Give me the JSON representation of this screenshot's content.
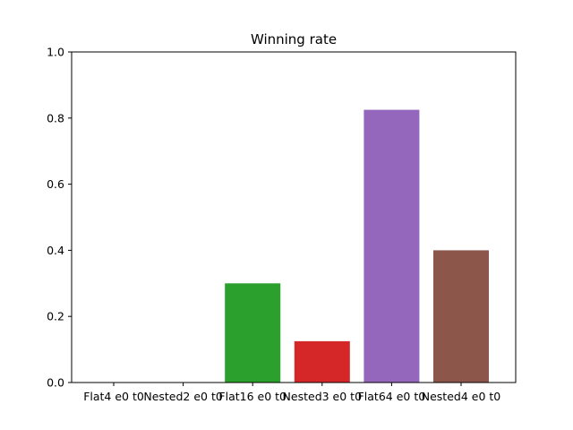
{
  "chart_data": {
    "type": "bar",
    "title": "Winning rate",
    "xlabel": "",
    "ylabel": "",
    "categories": [
      "Flat4 e0 t0",
      "Nested2 e0 t0",
      "Flat16 e0 t0",
      "Nested3 e0 t0",
      "Flat64 e0 t0",
      "Nested4 e0 t0"
    ],
    "values": [
      0.0,
      0.0,
      0.3,
      0.125,
      0.825,
      0.4
    ],
    "colors": [
      "#1f77b4",
      "#ff7f0e",
      "#2ca02c",
      "#d62728",
      "#9467bd",
      "#8c564b"
    ],
    "ylim": [
      0,
      1.0
    ],
    "yticks": [
      "0.0",
      "0.2",
      "0.4",
      "0.6",
      "0.8",
      "1.0"
    ],
    "grid": false,
    "legend": "none"
  }
}
